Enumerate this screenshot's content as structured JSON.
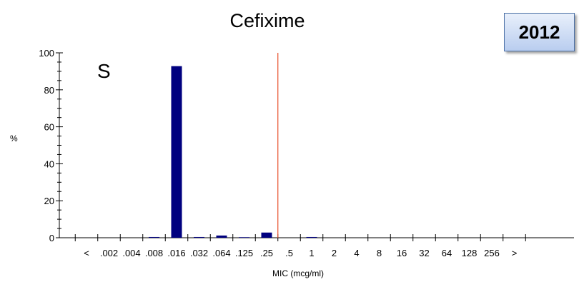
{
  "chart_data": {
    "type": "bar",
    "title": "Cefixime",
    "year_label": "2012",
    "annotation": "S",
    "xlabel": "MIC (mcg/ml)",
    "ylabel": "%",
    "categories": [
      "<",
      ".002",
      ".004",
      ".008",
      ".016",
      ".032",
      ".064",
      ".125",
      ".25",
      ".5",
      "1",
      "2",
      "4",
      "8",
      "16",
      "32",
      "64",
      "128",
      "256",
      ">"
    ],
    "values": [
      0,
      0,
      0,
      0.4,
      92.8,
      0.4,
      1.2,
      0.3,
      2.8,
      0,
      0.4,
      0,
      0,
      0,
      0,
      0,
      0,
      0,
      0,
      0
    ],
    "ylim": [
      0,
      100
    ],
    "yticks": [
      0,
      20,
      40,
      60,
      80,
      100
    ],
    "breakpoint_position": 8.5,
    "bar_color": "#00007f",
    "breakpoint_color": "#e8502c",
    "grid": false
  }
}
